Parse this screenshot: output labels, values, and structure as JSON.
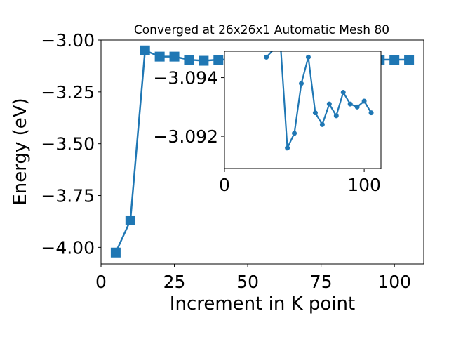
{
  "chart_data": [
    {
      "type": "line",
      "title": "Converged at 26x26x1 Automatic Mesh 80",
      "xlabel": "Increment in K point",
      "ylabel": "Energy (eV)",
      "xlim": [
        0,
        110
      ],
      "ylim": [
        -4.08,
        -3.0
      ],
      "x_ticks": [
        "0",
        "25",
        "50",
        "75",
        "100"
      ],
      "y_ticks": [
        "−3.00",
        "−3.25",
        "−3.50",
        "−3.75",
        "−4.00"
      ],
      "marker": "square",
      "color": "#1f77b4",
      "grid": false,
      "series": [
        {
          "x": [
            5,
            10,
            15,
            20,
            25,
            30,
            35,
            40,
            45,
            50,
            55,
            60,
            65,
            70,
            75,
            80,
            85,
            90,
            95,
            100,
            105
          ],
          "y": [
            -4.025,
            -3.87,
            -3.05,
            -3.08,
            -3.08,
            -3.095,
            -3.1,
            -3.095,
            -3.094,
            -3.094,
            -3.095,
            -3.095,
            -3.095,
            -3.095,
            -3.095,
            -3.094,
            -3.095,
            -3.095,
            -3.095,
            -3.095,
            -3.095
          ]
        }
      ]
    },
    {
      "type": "line",
      "title": "",
      "xlabel": "",
      "ylabel": "",
      "role": "inset zoom",
      "xlim": [
        0,
        112
      ],
      "ylim": [
        -3.0909,
        -3.0949
      ],
      "x_ticks": [
        "0",
        "100"
      ],
      "y_ticks": [
        "−3.094",
        "−3.092"
      ],
      "marker": "circle",
      "color": "#1f77b4",
      "grid": false,
      "series": [
        {
          "x": [
            30,
            40,
            45,
            50,
            55,
            60,
            65,
            70,
            75,
            80,
            85,
            90,
            95,
            100,
            105
          ],
          "y": [
            -3.0947,
            -3.0952,
            -3.0916,
            -3.0921,
            -3.0938,
            -3.0947,
            -3.0928,
            -3.0924,
            -3.0931,
            -3.0927,
            -3.0935,
            -3.0931,
            -3.093,
            -3.0932,
            -3.0928
          ]
        }
      ]
    }
  ]
}
